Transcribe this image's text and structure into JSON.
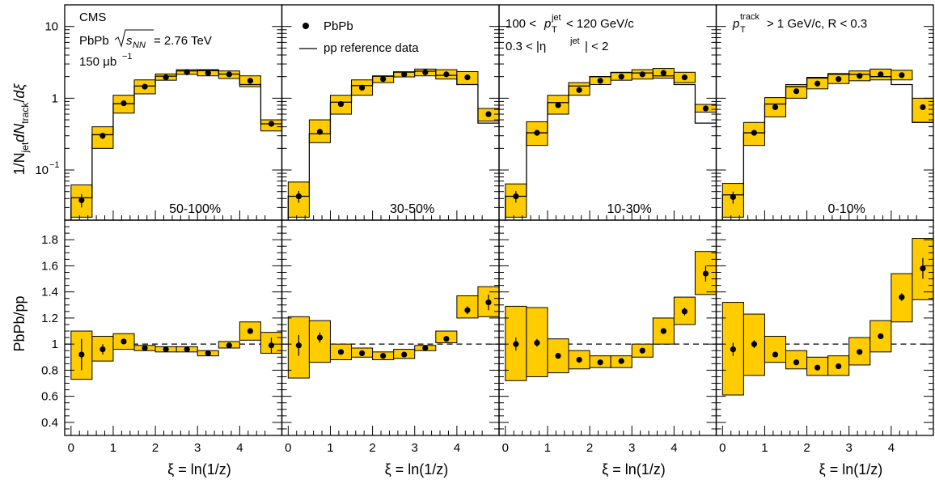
{
  "chart_data": {
    "type": "scatter",
    "xlabel": "ξ = ln(1/z)",
    "ylabel_top": "1/N_jet dN_track/dξ",
    "ylabel_bottom": "PbPb/pp",
    "x_ticks": [
      "0",
      "1",
      "2",
      "3",
      "4"
    ],
    "top_y_ticks": [
      "10",
      "1"
    ],
    "top_y_tick_minus1": "10",
    "bottom_y_ticks": [
      "0.4",
      "0.6",
      "0.8",
      "1",
      "1.2",
      "1.4",
      "1.6",
      "1.8"
    ],
    "xlim": [
      -0.15,
      5.0
    ],
    "top_ylim_log": [
      0.02,
      20
    ],
    "bottom_ylim": [
      0.3,
      1.95
    ],
    "reference_line": 1,
    "x": [
      0.25,
      0.75,
      1.25,
      1.75,
      2.25,
      2.75,
      3.25,
      3.75,
      4.25,
      4.75
    ],
    "bin_edges": [
      0,
      0.5,
      1.0,
      1.5,
      2.0,
      2.5,
      3.0,
      3.5,
      4.0,
      4.5,
      5.0
    ],
    "legend": {
      "pbpb": "PbPb",
      "pp": "pp reference data"
    },
    "labels": {
      "cms": "CMS",
      "system_prefix": "PbPb",
      "energy": "= 2.76 TeV",
      "lumi": "150 μb",
      "jet_pt_left": "100 <",
      "jet_pt_right": "< 120 GeV/c",
      "eta_left": "0.3 < |η",
      "eta_right": "| < 2",
      "track_cut": "> 1 GeV/c, R < 0.3",
      "jet_sup": "jet",
      "track_sup": "track",
      "T_sub": "T",
      "p": "p"
    },
    "panels": [
      {
        "centrality": "50-100%",
        "pbpb": [
          0.038,
          0.3,
          0.85,
          1.45,
          1.95,
          2.3,
          2.25,
          2.15,
          1.75,
          0.44
        ],
        "pbpb_err": [
          0.008,
          0.03,
          0.05,
          0.06,
          0.07,
          0.08,
          0.08,
          0.08,
          0.07,
          0.04
        ],
        "pbpb_sys": [
          [
            0.022,
            0.062
          ],
          [
            0.2,
            0.4
          ],
          [
            0.62,
            1.1
          ],
          [
            1.15,
            1.8
          ],
          [
            1.78,
            2.18
          ],
          [
            2.15,
            2.5
          ],
          [
            2.05,
            2.5
          ],
          [
            1.88,
            2.4
          ],
          [
            1.45,
            2.05
          ],
          [
            0.35,
            0.5
          ]
        ],
        "pp": [
          0.041,
          0.31,
          0.84,
          1.48,
          2.03,
          2.4,
          2.43,
          2.17,
          1.55,
          0.44
        ],
        "ratio": [
          0.92,
          0.96,
          1.02,
          0.97,
          0.96,
          0.96,
          0.93,
          0.99,
          1.1,
          0.99
        ],
        "ratio_err": [
          0.12,
          0.04,
          0.02,
          0.02,
          0.01,
          0.01,
          0.01,
          0.01,
          0.02,
          0.06
        ],
        "ratio_sys": [
          [
            0.73,
            1.1
          ],
          [
            0.87,
            1.06
          ],
          [
            0.96,
            1.08
          ],
          [
            0.95,
            0.99
          ],
          [
            0.94,
            0.98
          ],
          [
            0.94,
            0.98
          ],
          [
            0.91,
            0.95
          ],
          [
            0.97,
            1.02
          ],
          [
            1.03,
            1.17
          ],
          [
            0.93,
            1.09
          ]
        ]
      },
      {
        "centrality": "30-50%",
        "pbpb": [
          0.043,
          0.34,
          0.83,
          1.4,
          1.85,
          2.15,
          2.3,
          2.15,
          1.95,
          0.6
        ],
        "pbpb_err": [
          0.008,
          0.03,
          0.05,
          0.06,
          0.07,
          0.08,
          0.08,
          0.08,
          0.07,
          0.05
        ],
        "pbpb_sys": [
          [
            0.022,
            0.068
          ],
          [
            0.24,
            0.5
          ],
          [
            0.6,
            1.1
          ],
          [
            1.1,
            1.8
          ],
          [
            1.65,
            2.05
          ],
          [
            1.98,
            2.3
          ],
          [
            2.05,
            2.55
          ],
          [
            1.85,
            2.5
          ],
          [
            1.55,
            2.35
          ],
          [
            0.48,
            0.72
          ]
        ],
        "pp": [
          0.043,
          0.32,
          0.88,
          1.5,
          2.02,
          2.33,
          2.38,
          2.08,
          1.55,
          0.45
        ],
        "ratio": [
          0.99,
          1.05,
          0.94,
          0.93,
          0.91,
          0.92,
          0.97,
          1.04,
          1.26,
          1.32
        ],
        "ratio_err": [
          0.08,
          0.04,
          0.02,
          0.02,
          0.01,
          0.01,
          0.01,
          0.02,
          0.03,
          0.06
        ],
        "ratio_sys": [
          [
            0.74,
            1.21
          ],
          [
            0.86,
            1.18
          ],
          [
            0.88,
            1.0
          ],
          [
            0.9,
            0.97
          ],
          [
            0.88,
            0.94
          ],
          [
            0.89,
            0.96
          ],
          [
            0.95,
            0.99
          ],
          [
            1.01,
            1.1
          ],
          [
            1.2,
            1.37
          ],
          [
            1.21,
            1.44
          ]
        ]
      },
      {
        "centrality": "10-30%",
        "pbpb": [
          0.043,
          0.33,
          0.8,
          1.3,
          1.75,
          2.0,
          2.15,
          2.25,
          1.95,
          0.72
        ],
        "pbpb_err": [
          0.008,
          0.03,
          0.05,
          0.06,
          0.07,
          0.08,
          0.08,
          0.08,
          0.07,
          0.05
        ],
        "pbpb_sys": [
          [
            0.022,
            0.064
          ],
          [
            0.22,
            0.47
          ],
          [
            0.6,
            1.1
          ],
          [
            1.1,
            1.65
          ],
          [
            1.55,
            2.0
          ],
          [
            1.78,
            2.3
          ],
          [
            1.85,
            2.5
          ],
          [
            1.9,
            2.6
          ],
          [
            1.65,
            2.3
          ],
          [
            0.64,
            0.82
          ]
        ],
        "pp": [
          0.043,
          0.33,
          0.87,
          1.48,
          2.0,
          2.28,
          2.25,
          2.05,
          1.55,
          0.45
        ],
        "ratio": [
          1.0,
          1.01,
          0.91,
          0.88,
          0.86,
          0.87,
          0.95,
          1.1,
          1.25,
          1.54
        ],
        "ratio_err": [
          0.05,
          0.03,
          0.02,
          0.02,
          0.01,
          0.01,
          0.02,
          0.02,
          0.03,
          0.06
        ],
        "ratio_sys": [
          [
            0.72,
            1.29
          ],
          [
            0.75,
            1.28
          ],
          [
            0.78,
            1.04
          ],
          [
            0.81,
            0.95
          ],
          [
            0.82,
            0.91
          ],
          [
            0.82,
            0.91
          ],
          [
            0.9,
            1.0
          ],
          [
            1.0,
            1.2
          ],
          [
            1.15,
            1.36
          ],
          [
            1.38,
            1.71
          ]
        ]
      },
      {
        "centrality": "0-10%",
        "pbpb": [
          0.042,
          0.33,
          0.75,
          1.25,
          1.6,
          1.85,
          2.05,
          2.15,
          2.1,
          0.75
        ],
        "pbpb_err": [
          0.008,
          0.03,
          0.05,
          0.06,
          0.07,
          0.08,
          0.08,
          0.08,
          0.07,
          0.06
        ],
        "pbpb_sys": [
          [
            0.022,
            0.065
          ],
          [
            0.22,
            0.46
          ],
          [
            0.55,
            1.02
          ],
          [
            1.0,
            1.55
          ],
          [
            1.35,
            1.9
          ],
          [
            1.6,
            2.15
          ],
          [
            1.75,
            2.4
          ],
          [
            1.8,
            2.55
          ],
          [
            1.8,
            2.45
          ],
          [
            0.46,
            1.0
          ]
        ],
        "pp": [
          0.045,
          0.33,
          0.83,
          1.45,
          1.95,
          2.2,
          2.15,
          2.0,
          1.55,
          0.46
        ],
        "ratio": [
          0.96,
          1.0,
          0.92,
          0.86,
          0.82,
          0.83,
          0.94,
          1.06,
          1.36,
          1.58
        ],
        "ratio_err": [
          0.05,
          0.03,
          0.02,
          0.02,
          0.01,
          0.01,
          0.02,
          0.02,
          0.03,
          0.08
        ],
        "ratio_sys": [
          [
            0.61,
            1.32
          ],
          [
            0.76,
            1.23
          ],
          [
            0.86,
            1.06
          ],
          [
            0.81,
            0.95
          ],
          [
            0.76,
            0.9
          ],
          [
            0.76,
            0.91
          ],
          [
            0.84,
            1.05
          ],
          [
            0.94,
            1.18
          ],
          [
            1.17,
            1.54
          ],
          [
            1.34,
            1.81
          ]
        ]
      }
    ]
  }
}
